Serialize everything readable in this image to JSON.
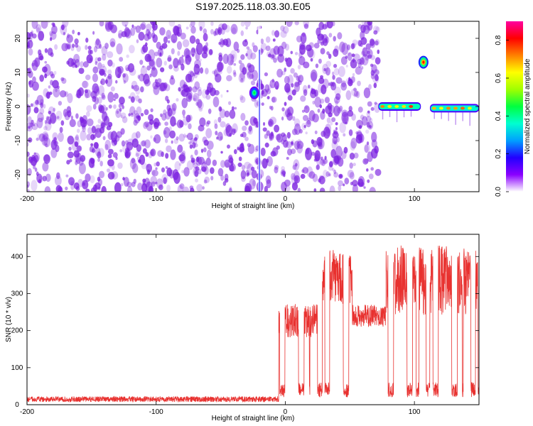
{
  "title": "S197.2025.118.03.30.E05",
  "colors": {
    "snr_line": "#e8312f",
    "spectrogram_base": "#7a1fe0",
    "frame": "#000000",
    "colorbar_stops": [
      "#ffffff",
      "#8a00ff",
      "#2200ff",
      "#00a0ff",
      "#00ffd0",
      "#00ff40",
      "#a0ff00",
      "#ffff00",
      "#ff8000",
      "#ff0000",
      "#ff00a0"
    ]
  },
  "chart_data": [
    {
      "type": "heatmap",
      "title": "S197.2025.118.03.30.E05",
      "xlabel": "Height of straight line (km)",
      "ylabel": "Frequency (Hz)",
      "xlim": [
        -200,
        150
      ],
      "ylim": [
        -25,
        25
      ],
      "x_ticks": [
        -200,
        -100,
        0,
        100
      ],
      "y_ticks": [
        -20,
        -10,
        0,
        10,
        20
      ],
      "colorbar": {
        "label": "Normalized spectral amplitude",
        "range": [
          0,
          0.9
        ],
        "ticks": [
          0.0,
          0.2,
          0.4,
          0.6,
          0.8
        ]
      },
      "features": [
        {
          "description": "broadband noise",
          "x_range": [
            -200,
            72
          ],
          "amplitude": 0.1
        },
        {
          "description": "vertical stripe",
          "x": -20,
          "amplitude": 0.2
        },
        {
          "description": "tone",
          "x": -24,
          "frequency": 4,
          "amplitude": 0.45
        },
        {
          "description": "tone band",
          "x_range": [
            72,
            105
          ],
          "frequency": 0,
          "amplitude": 0.75
        },
        {
          "description": "tone",
          "x": 107,
          "frequency": 13,
          "amplitude": 0.8
        },
        {
          "description": "tone band",
          "x_range": [
            112,
            150
          ],
          "frequency": -0.5,
          "amplitude": 0.7
        }
      ]
    },
    {
      "type": "line",
      "xlabel": "Height of straight line (km)",
      "ylabel": "SNR (10 * v/v)",
      "xlim": [
        -200,
        150
      ],
      "ylim": [
        0,
        460
      ],
      "x_ticks": [
        -200,
        -100,
        0,
        100
      ],
      "y_ticks": [
        0,
        100,
        200,
        300,
        400
      ],
      "segments": [
        {
          "x_range": [
            -200,
            -5
          ],
          "baseline": 15,
          "spread": 15
        },
        {
          "x_range": [
            -5,
            28
          ],
          "baseline": 200,
          "spread": 200,
          "modulated": true
        },
        {
          "x_range": [
            28,
            52
          ],
          "baseline": 300,
          "spread": 330,
          "modulated": true
        },
        {
          "x_range": [
            52,
            78
          ],
          "baseline": 240,
          "spread": 60
        },
        {
          "x_range": [
            78,
            150
          ],
          "baseline": 280,
          "spread": 420,
          "modulated": true
        }
      ]
    }
  ]
}
